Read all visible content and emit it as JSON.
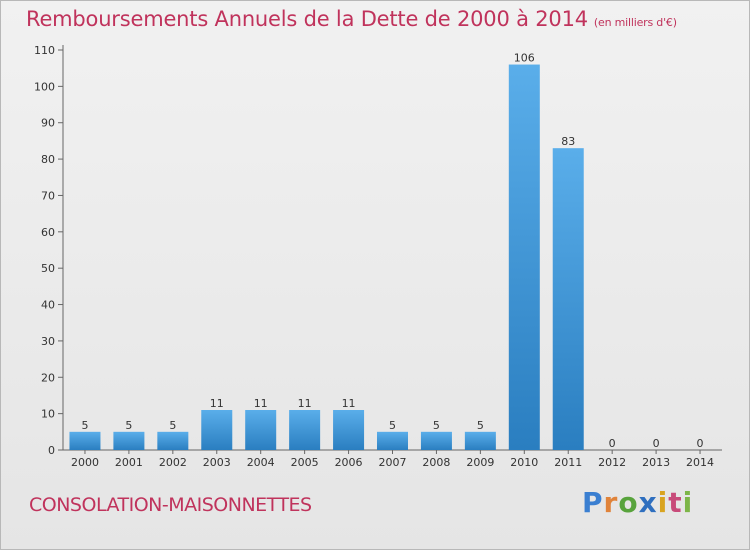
{
  "title": "Remboursements Annuels de la Dette de 2000 à 2014",
  "unit": "(en milliers d'€)",
  "city": "CONSOLATION-MAISONNETTES",
  "logo": {
    "p": "P",
    "r": "r",
    "o": "o",
    "x": "x",
    "i1": "i",
    "t": "t",
    "i2": "i"
  },
  "colors": {
    "title": "#c0335c",
    "bar_light": "#5aaeea",
    "bar_dark": "#2a7ec0"
  },
  "chart_data": {
    "type": "bar",
    "title": "Remboursements Annuels de la Dette de 2000 à 2014",
    "subtitle": "(en milliers d'€)",
    "xlabel": "",
    "ylabel": "",
    "categories": [
      "2000",
      "2001",
      "2002",
      "2003",
      "2004",
      "2005",
      "2006",
      "2007",
      "2008",
      "2009",
      "2010",
      "2011",
      "2012",
      "2013",
      "2014"
    ],
    "values": [
      5,
      5,
      5,
      11,
      11,
      11,
      11,
      5,
      5,
      5,
      106,
      83,
      0,
      0,
      0
    ],
    "value_labels": [
      "5",
      "5",
      "5",
      "11",
      "11",
      "11",
      "11",
      "5",
      "5",
      "5",
      "106",
      "83",
      "0",
      "0",
      "0"
    ],
    "ylim": [
      0,
      110
    ],
    "yticks": [
      0,
      10,
      20,
      30,
      40,
      50,
      60,
      70,
      80,
      90,
      100,
      110
    ],
    "grid": false,
    "legend": "none"
  }
}
